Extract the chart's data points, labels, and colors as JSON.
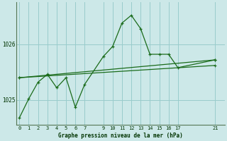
{
  "title": "Graphe pression niveau de la mer (hPa)",
  "bg_color": "#cce8e8",
  "grid_color": "#99cccc",
  "line_color": "#1a6b1a",
  "border_color": "#557755",
  "xticks": [
    0,
    1,
    2,
    3,
    4,
    5,
    6,
    7,
    9,
    10,
    11,
    12,
    13,
    14,
    15,
    16,
    17,
    21
  ],
  "xlim": [
    -0.3,
    22.0
  ],
  "ylim": [
    1024.55,
    1026.75
  ],
  "yticks": [
    1025,
    1026
  ],
  "line1_x": [
    0,
    1,
    2,
    3,
    4,
    5,
    6,
    7,
    9,
    10,
    11,
    12,
    13,
    14,
    15,
    16,
    17,
    21
  ],
  "line1_y": [
    1024.68,
    1025.02,
    1025.32,
    1025.46,
    1025.22,
    1025.4,
    1024.87,
    1025.28,
    1025.78,
    1025.96,
    1026.38,
    1026.52,
    1026.28,
    1025.82,
    1025.82,
    1025.82,
    1025.58,
    1025.72
  ],
  "line2_x": [
    0,
    21
  ],
  "line2_y": [
    1025.4,
    1025.72
  ],
  "line3_x": [
    0,
    21
  ],
  "line3_y": [
    1025.4,
    1025.62
  ]
}
